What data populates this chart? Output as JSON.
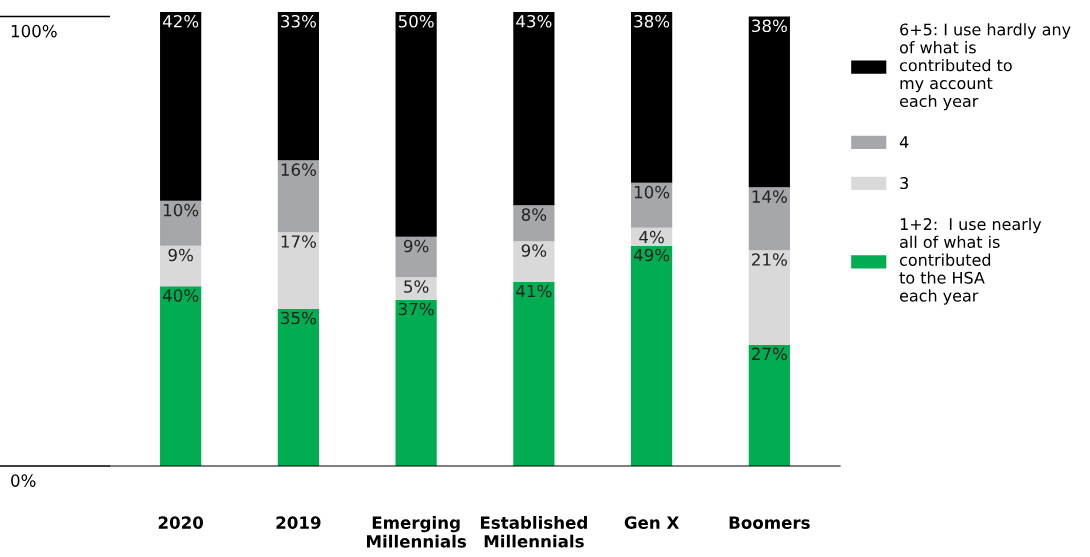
{
  "chart_data": {
    "type": "bar",
    "stacked": true,
    "categories": [
      "2020",
      "2019",
      "Emerging\nMillennials",
      "Established\nMillennials",
      "Gen X",
      "Boomers"
    ],
    "series": [
      {
        "name": "1+2:  I use nearly\nall of what is\ncontributed\nto the HSA\neach year",
        "color": "#00ad50",
        "values": [
          40,
          35,
          37,
          41,
          49,
          27
        ],
        "value_labels": [
          "40%",
          "35%",
          "37%",
          "41%",
          "49%",
          "27%"
        ]
      },
      {
        "name": "3",
        "color": "#d9d9da",
        "values": [
          9,
          17,
          5,
          9,
          4,
          21
        ],
        "value_labels": [
          "9%",
          "17%",
          "5%",
          "9%",
          "4%",
          "21%"
        ]
      },
      {
        "name": "4",
        "color": "#a6a7aa",
        "values": [
          10,
          16,
          9,
          8,
          10,
          14
        ],
        "value_labels": [
          "10%",
          "16%",
          "9%",
          "8%",
          "10%",
          "14%"
        ]
      },
      {
        "name": "6+5: I use hardly any\nof what is\ncontributed to\nmy account\neach year",
        "color": "#000000",
        "values": [
          42,
          33,
          50,
          43,
          38,
          38
        ],
        "value_labels": [
          "42%",
          "33%",
          "50%",
          "43%",
          "38%",
          "38%"
        ]
      }
    ],
    "ylim": [
      0,
      101
    ],
    "yticks": [
      {
        "value": 0,
        "label": "0%"
      },
      {
        "value": 100,
        "label": "100%"
      }
    ],
    "grid": false,
    "legend": "right"
  }
}
